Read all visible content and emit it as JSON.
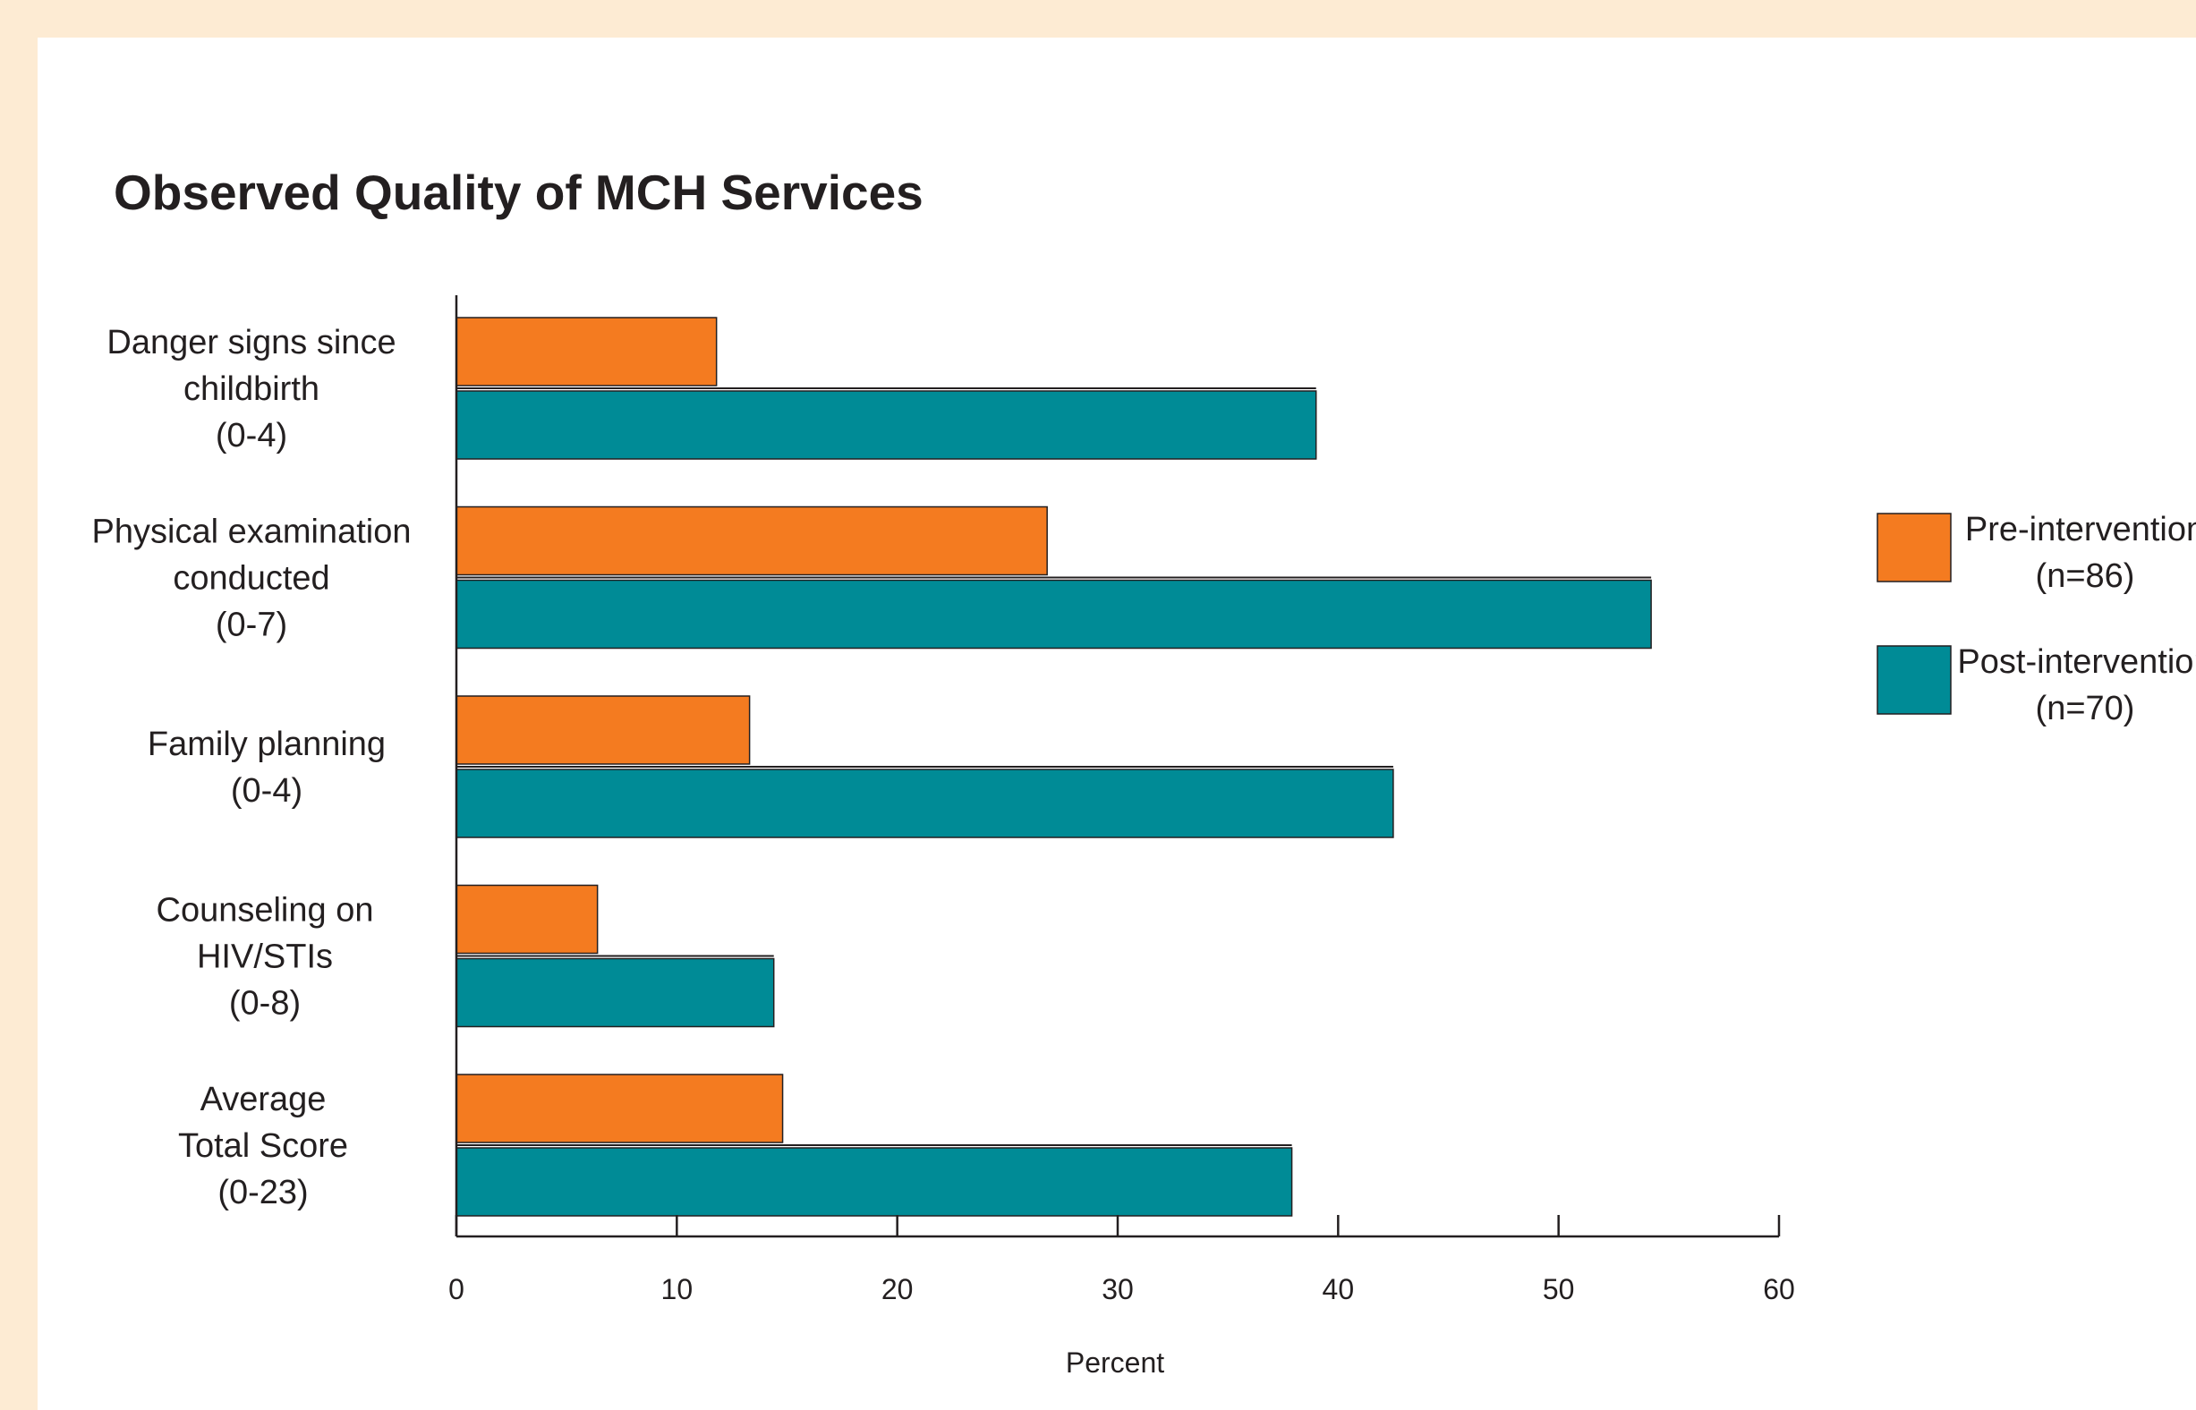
{
  "chart_data": {
    "type": "bar",
    "orientation": "horizontal",
    "title": "Observed Quality of MCH Services",
    "xlabel": "Percent",
    "ylabel": "",
    "xlim": [
      0,
      60
    ],
    "ticks": [
      "0",
      "10",
      "20",
      "30",
      "40",
      "50",
      "60"
    ],
    "categories": [
      [
        "Danger signs since",
        "childbirth",
        "(0-4)"
      ],
      [
        "Physical examination",
        "conducted",
        "(0-7)"
      ],
      [
        "Family planning",
        "(0-4)"
      ],
      [
        "Counseling on",
        "HIV/STIs",
        "(0-8)"
      ],
      [
        "Average",
        "Total Score",
        "(0-23)"
      ]
    ],
    "series": [
      {
        "name": "Pre-intervention",
        "sublabel": "(n=86)",
        "color": "#f47b20",
        "values": [
          11.8,
          26.8,
          13.3,
          6.4,
          14.8
        ]
      },
      {
        "name": "Post-intervention",
        "sublabel": "(n=70)",
        "color": "#008b96",
        "values": [
          39.0,
          54.2,
          42.5,
          14.4,
          37.9
        ]
      }
    ],
    "grid": false,
    "legend_position": "right"
  }
}
